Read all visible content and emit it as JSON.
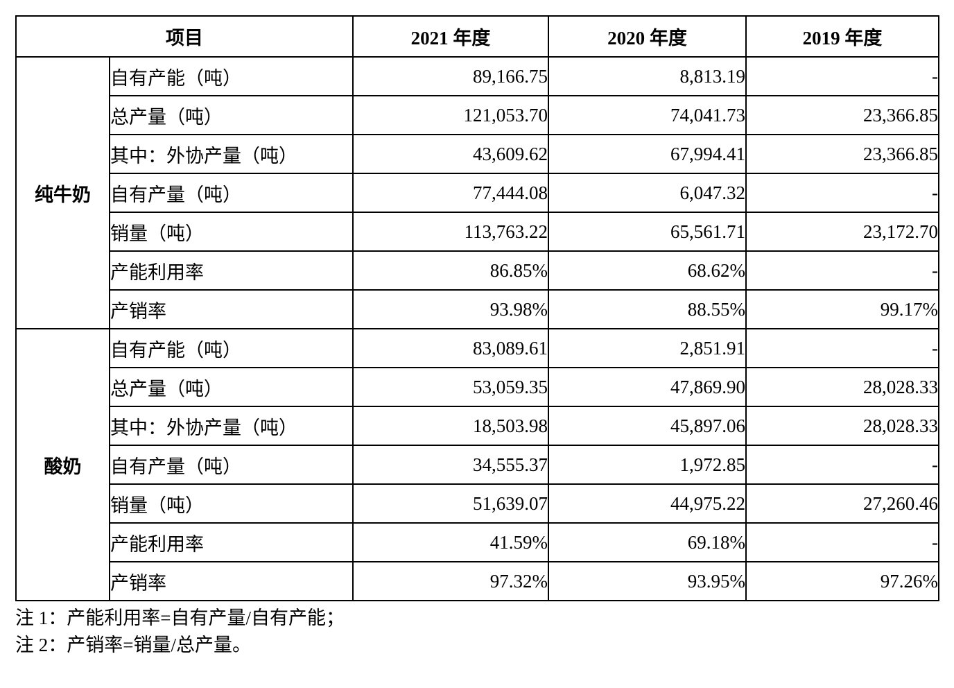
{
  "table": {
    "header": {
      "item_label": "项目",
      "year_2021": "2021 年度",
      "year_2020": "2020 年度",
      "year_2019": "2019 年度"
    },
    "groups": [
      {
        "name": "纯牛奶",
        "rows": [
          {
            "label": "自有产能（吨）",
            "y2021": "89,166.75",
            "y2020": "8,813.19",
            "y2019": "-"
          },
          {
            "label": "总产量（吨）",
            "y2021": "121,053.70",
            "y2020": "74,041.73",
            "y2019": "23,366.85"
          },
          {
            "label": "其中：外协产量（吨）",
            "y2021": "43,609.62",
            "y2020": "67,994.41",
            "y2019": "23,366.85"
          },
          {
            "label": "自有产量（吨）",
            "y2021": "77,444.08",
            "y2020": "6,047.32",
            "y2019": "-"
          },
          {
            "label": "销量（吨）",
            "y2021": "113,763.22",
            "y2020": "65,561.71",
            "y2019": "23,172.70"
          },
          {
            "label": "产能利用率",
            "y2021": "86.85%",
            "y2020": "68.62%",
            "y2019": "-"
          },
          {
            "label": "产销率",
            "y2021": "93.98%",
            "y2020": "88.55%",
            "y2019": "99.17%"
          }
        ]
      },
      {
        "name": "酸奶",
        "rows": [
          {
            "label": "自有产能（吨）",
            "y2021": "83,089.61",
            "y2020": "2,851.91",
            "y2019": "-"
          },
          {
            "label": "总产量（吨）",
            "y2021": "53,059.35",
            "y2020": "47,869.90",
            "y2019": "28,028.33"
          },
          {
            "label": "其中：外协产量（吨）",
            "y2021": "18,503.98",
            "y2020": "45,897.06",
            "y2019": "28,028.33"
          },
          {
            "label": "自有产量（吨）",
            "y2021": "34,555.37",
            "y2020": "1,972.85",
            "y2019": "-"
          },
          {
            "label": "销量（吨）",
            "y2021": "51,639.07",
            "y2020": "44,975.22",
            "y2019": "27,260.46"
          },
          {
            "label": "产能利用率",
            "y2021": "41.59%",
            "y2020": "69.18%",
            "y2019": "-"
          },
          {
            "label": "产销率",
            "y2021": "97.32%",
            "y2020": "93.95%",
            "y2019": "97.26%"
          }
        ]
      }
    ]
  },
  "notes": [
    "注 1：产能利用率=自有产量/自有产能；",
    "注 2：产销率=销量/总产量。"
  ]
}
